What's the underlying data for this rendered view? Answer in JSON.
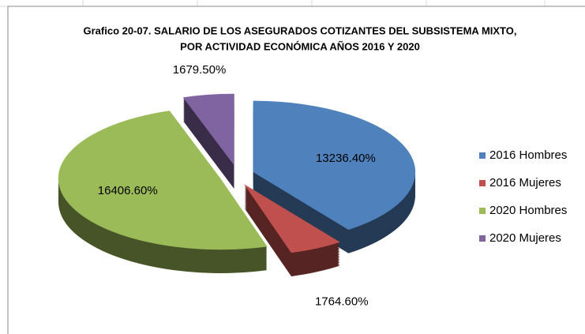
{
  "chart_data": {
    "type": "pie3d",
    "title": [
      "Grafico 20-07. SALARIO DE LOS ASEGURADOS COTIZANTES DEL SUBSISTEMA MIXTO,",
      "POR ACTIVIDAD ECONÓMICA AÑOS 2016 Y 2020"
    ],
    "categories": [
      "2016 Hombres",
      "2016 Mujeres",
      "2020 Hombres",
      "2020 Mujeres"
    ],
    "values": [
      13236.4,
      1764.6,
      16406.6,
      1679.5
    ],
    "value_labels": [
      "13236.40%",
      "1764.60%",
      "16406.60%",
      "1679.50%"
    ],
    "colors": [
      "#4f81bd",
      "#c0504d",
      "#9bbb59",
      "#8064a2"
    ],
    "legend": "right"
  }
}
